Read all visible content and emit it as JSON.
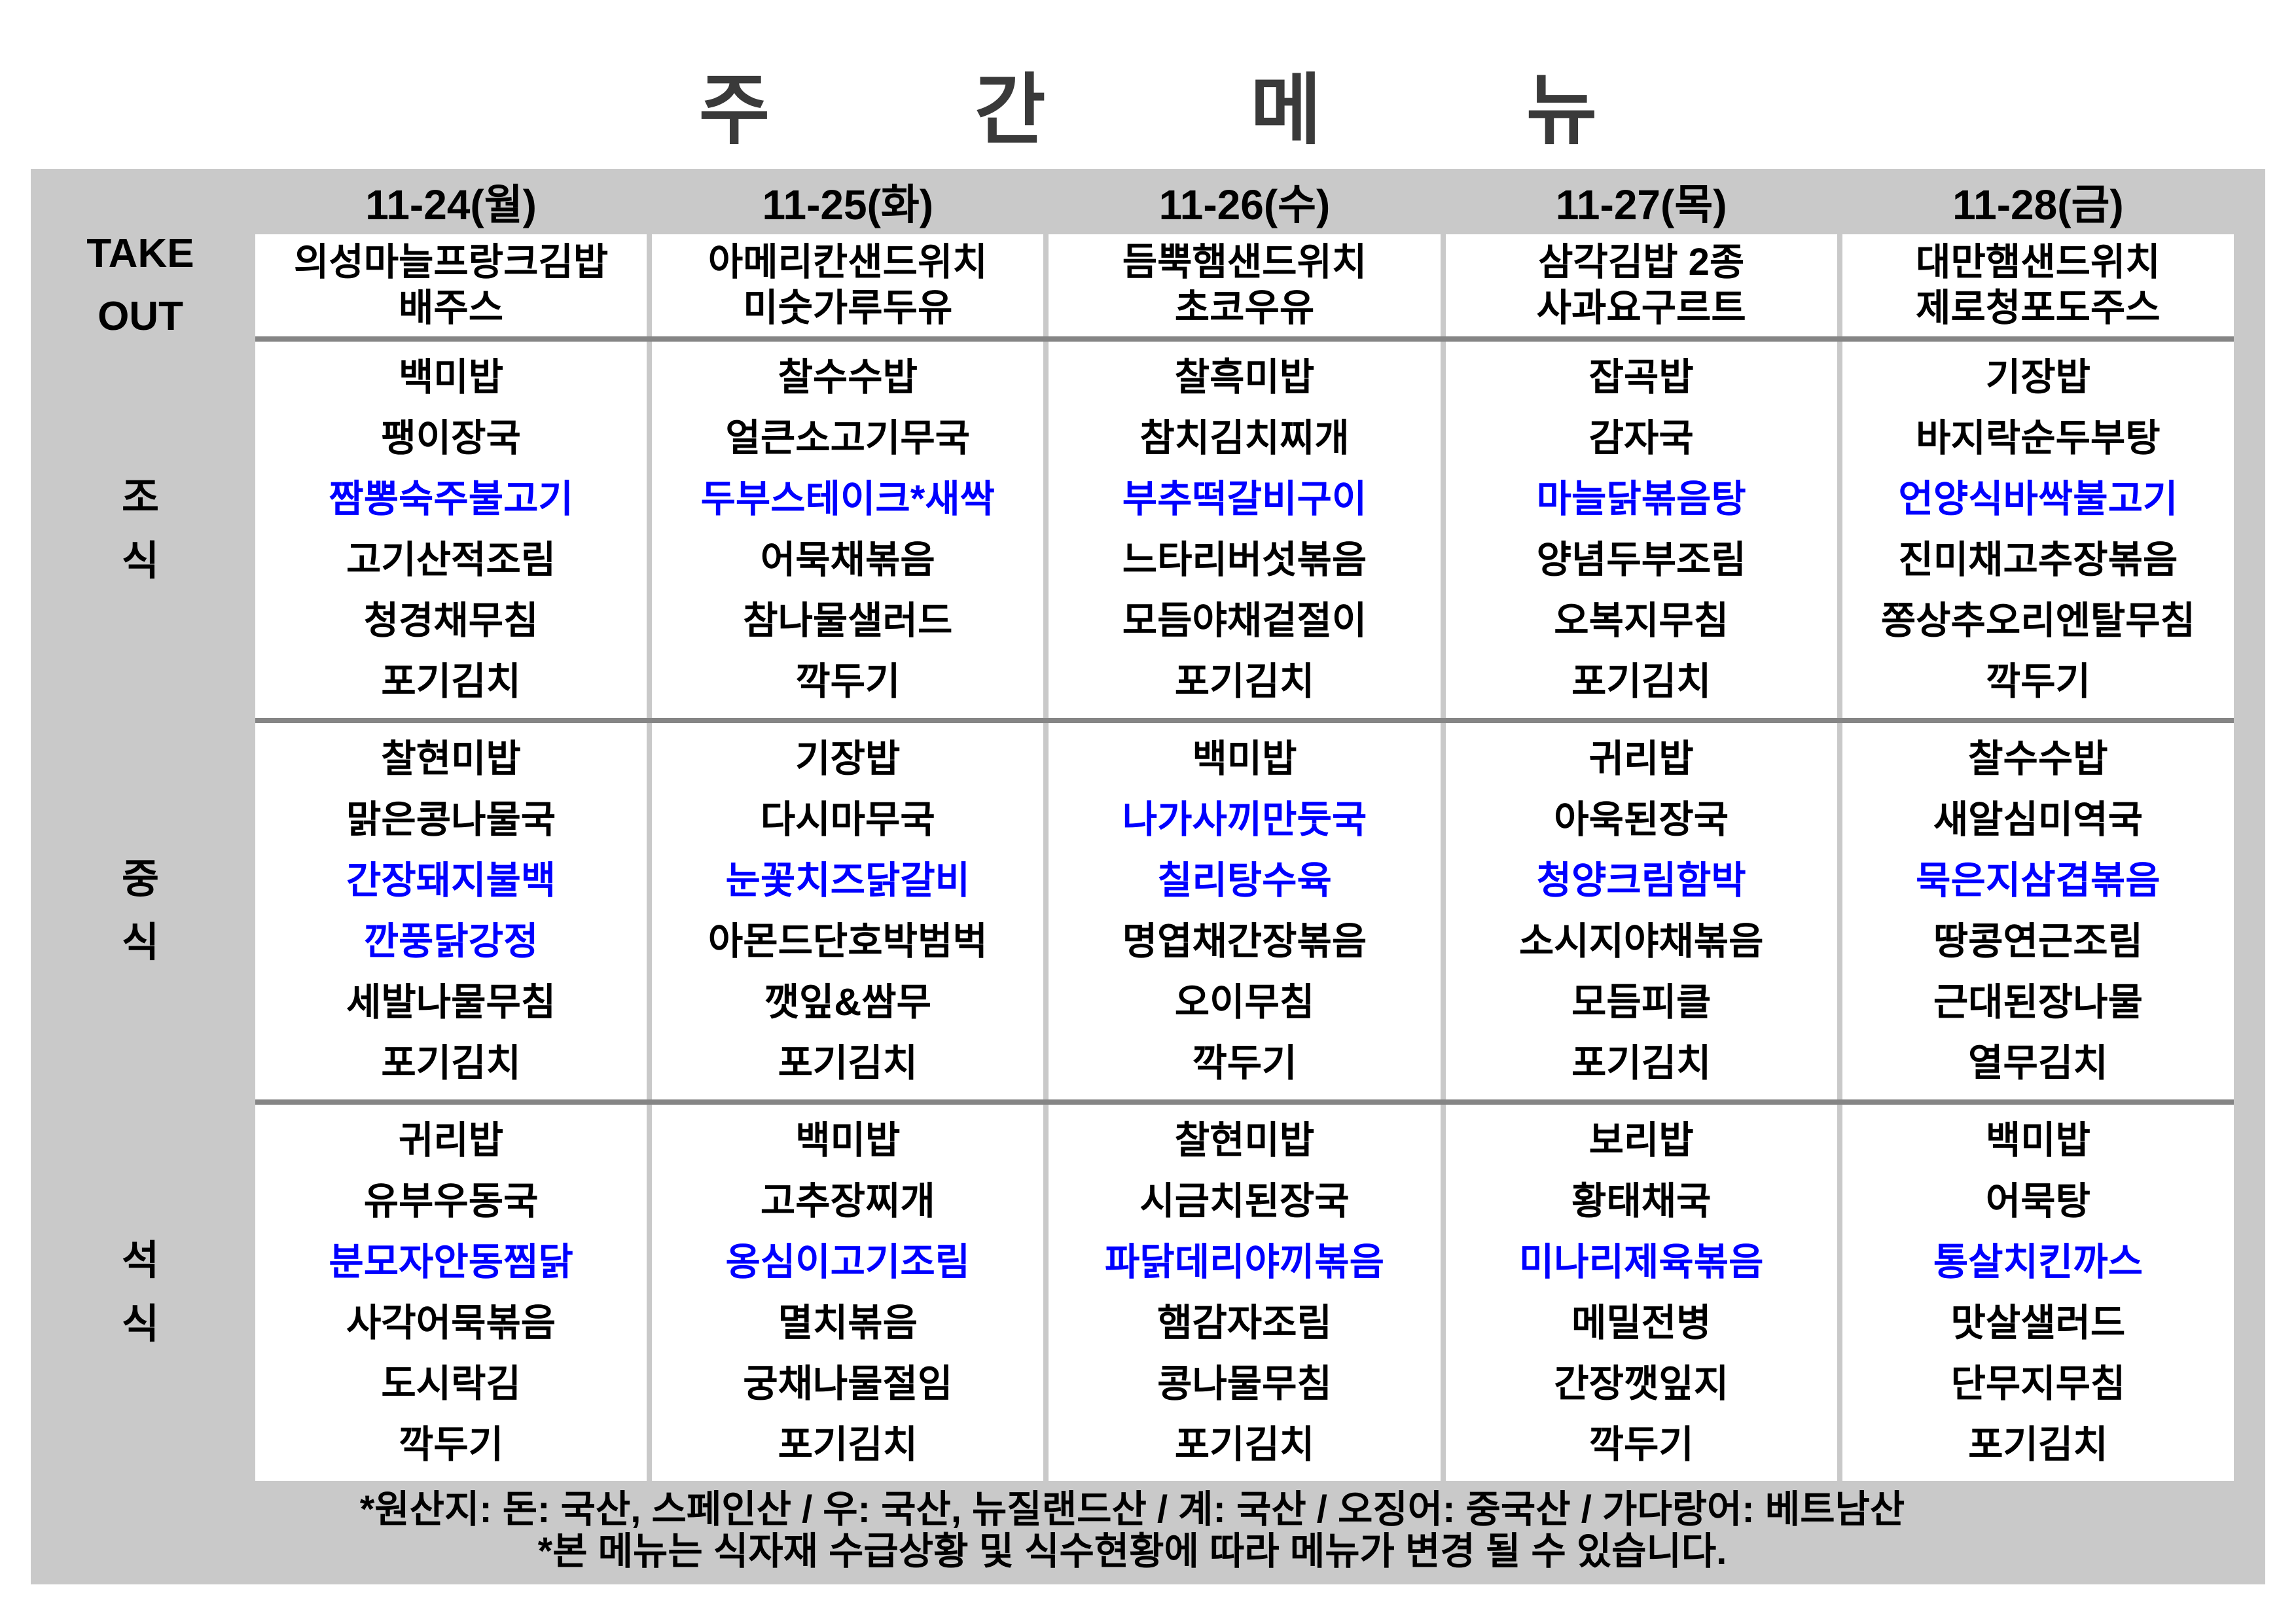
{
  "title": "주 간 메 뉴",
  "colors": {
    "table_background": "#c9c9c9",
    "cell_background": "#ffffff",
    "divider": "#858585",
    "highlight_text": "#0000ff",
    "text": "#000000",
    "title_text": "#3a3a3a"
  },
  "table": {
    "days": [
      "11-24(월)",
      "11-25(화)",
      "11-26(수)",
      "11-27(목)",
      "11-28(금)"
    ],
    "sections": [
      {
        "id": "takeout",
        "label": "TAKE OUT",
        "label_lines": [
          "TAKE",
          "OUT"
        ],
        "days": [
          {
            "items": [
              {
                "text": "의성마늘프랑크김밥",
                "highlight": false
              },
              {
                "text": "배주스",
                "highlight": false
              }
            ]
          },
          {
            "items": [
              {
                "text": "아메리칸샌드위치",
                "highlight": false
              },
              {
                "text": "미숫가루두유",
                "highlight": false
              }
            ]
          },
          {
            "items": [
              {
                "text": "듬뿍햄샌드위치",
                "highlight": false
              },
              {
                "text": "초코우유",
                "highlight": false
              }
            ]
          },
          {
            "items": [
              {
                "text": "삼각김밥 2종",
                "highlight": false
              },
              {
                "text": "사과요구르트",
                "highlight": false
              }
            ]
          },
          {
            "items": [
              {
                "text": "대만햄샌드위치",
                "highlight": false
              },
              {
                "text": "제로청포도주스",
                "highlight": false
              }
            ]
          }
        ]
      },
      {
        "id": "breakfast",
        "label": "조식",
        "label_lines": [
          "조",
          "식"
        ],
        "days": [
          {
            "items": [
              {
                "text": "백미밥",
                "highlight": false
              },
              {
                "text": "팽이장국",
                "highlight": false
              },
              {
                "text": "짬뽕숙주불고기",
                "highlight": true
              },
              {
                "text": "고기산적조림",
                "highlight": false
              },
              {
                "text": "청경채무침",
                "highlight": false
              },
              {
                "text": "포기김치",
                "highlight": false
              }
            ]
          },
          {
            "items": [
              {
                "text": "찰수수밥",
                "highlight": false
              },
              {
                "text": "얼큰소고기무국",
                "highlight": false
              },
              {
                "text": "두부스테이크*새싹",
                "highlight": true
              },
              {
                "text": "어묵채볶음",
                "highlight": false
              },
              {
                "text": "참나물샐러드",
                "highlight": false
              },
              {
                "text": "깍두기",
                "highlight": false
              }
            ]
          },
          {
            "items": [
              {
                "text": "찰흑미밥",
                "highlight": false
              },
              {
                "text": "참치김치찌개",
                "highlight": false
              },
              {
                "text": "부추떡갈비구이",
                "highlight": true
              },
              {
                "text": "느타리버섯볶음",
                "highlight": false
              },
              {
                "text": "모듬야채겉절이",
                "highlight": false
              },
              {
                "text": "포기김치",
                "highlight": false
              }
            ]
          },
          {
            "items": [
              {
                "text": "잡곡밥",
                "highlight": false
              },
              {
                "text": "감자국",
                "highlight": false
              },
              {
                "text": "마늘닭볶음탕",
                "highlight": true
              },
              {
                "text": "양념두부조림",
                "highlight": false
              },
              {
                "text": "오복지무침",
                "highlight": false
              },
              {
                "text": "포기김치",
                "highlight": false
              }
            ]
          },
          {
            "items": [
              {
                "text": "기장밥",
                "highlight": false
              },
              {
                "text": "바지락순두부탕",
                "highlight": false
              },
              {
                "text": "언양식바싹불고기",
                "highlight": true
              },
              {
                "text": "진미채고추장볶음",
                "highlight": false
              },
              {
                "text": "쫑상추오리엔탈무침",
                "highlight": false
              },
              {
                "text": "깍두기",
                "highlight": false
              }
            ]
          }
        ]
      },
      {
        "id": "lunch",
        "label": "중식",
        "label_lines": [
          "중",
          "식"
        ],
        "days": [
          {
            "items": [
              {
                "text": "찰현미밥",
                "highlight": false
              },
              {
                "text": "맑은콩나물국",
                "highlight": false
              },
              {
                "text": "간장돼지불백",
                "highlight": true
              },
              {
                "text": "깐풍닭강정",
                "highlight": true
              },
              {
                "text": "세발나물무침",
                "highlight": false
              },
              {
                "text": "포기김치",
                "highlight": false
              }
            ]
          },
          {
            "items": [
              {
                "text": "기장밥",
                "highlight": false
              },
              {
                "text": "다시마무국",
                "highlight": false
              },
              {
                "text": "눈꽃치즈닭갈비",
                "highlight": true
              },
              {
                "text": "아몬드단호박범벅",
                "highlight": false
              },
              {
                "text": "깻잎&쌈무",
                "highlight": false
              },
              {
                "text": "포기김치",
                "highlight": false
              }
            ]
          },
          {
            "items": [
              {
                "text": "백미밥",
                "highlight": false
              },
              {
                "text": "나가사끼만둣국",
                "highlight": true
              },
              {
                "text": "칠리탕수육",
                "highlight": true
              },
              {
                "text": "명엽채간장볶음",
                "highlight": false
              },
              {
                "text": "오이무침",
                "highlight": false
              },
              {
                "text": "깍두기",
                "highlight": false
              }
            ]
          },
          {
            "items": [
              {
                "text": "귀리밥",
                "highlight": false
              },
              {
                "text": "아욱된장국",
                "highlight": false
              },
              {
                "text": "청양크림함박",
                "highlight": true
              },
              {
                "text": "소시지야채볶음",
                "highlight": false
              },
              {
                "text": "모듬피클",
                "highlight": false
              },
              {
                "text": "포기김치",
                "highlight": false
              }
            ]
          },
          {
            "items": [
              {
                "text": "찰수수밥",
                "highlight": false
              },
              {
                "text": "새알심미역국",
                "highlight": false
              },
              {
                "text": "묵은지삼겹볶음",
                "highlight": true
              },
              {
                "text": "땅콩연근조림",
                "highlight": false
              },
              {
                "text": "근대된장나물",
                "highlight": false
              },
              {
                "text": "열무김치",
                "highlight": false
              }
            ]
          }
        ]
      },
      {
        "id": "dinner",
        "label": "석식",
        "label_lines": [
          "석",
          "식"
        ],
        "days": [
          {
            "items": [
              {
                "text": "귀리밥",
                "highlight": false
              },
              {
                "text": "유부우동국",
                "highlight": false
              },
              {
                "text": "분모자안동찜닭",
                "highlight": true
              },
              {
                "text": "사각어묵볶음",
                "highlight": false
              },
              {
                "text": "도시락김",
                "highlight": false
              },
              {
                "text": "깍두기",
                "highlight": false
              }
            ]
          },
          {
            "items": [
              {
                "text": "백미밥",
                "highlight": false
              },
              {
                "text": "고추장찌개",
                "highlight": false
              },
              {
                "text": "옹심이고기조림",
                "highlight": true
              },
              {
                "text": "멸치볶음",
                "highlight": false
              },
              {
                "text": "궁채나물절임",
                "highlight": false
              },
              {
                "text": "포기김치",
                "highlight": false
              }
            ]
          },
          {
            "items": [
              {
                "text": "찰현미밥",
                "highlight": false
              },
              {
                "text": "시금치된장국",
                "highlight": false
              },
              {
                "text": "파닭데리야끼볶음",
                "highlight": true
              },
              {
                "text": "햄감자조림",
                "highlight": false
              },
              {
                "text": "콩나물무침",
                "highlight": false
              },
              {
                "text": "포기김치",
                "highlight": false
              }
            ]
          },
          {
            "items": [
              {
                "text": "보리밥",
                "highlight": false
              },
              {
                "text": "황태채국",
                "highlight": false
              },
              {
                "text": "미나리제육볶음",
                "highlight": true
              },
              {
                "text": "메밀전병",
                "highlight": false
              },
              {
                "text": "간장깻잎지",
                "highlight": false
              },
              {
                "text": "깍두기",
                "highlight": false
              }
            ]
          },
          {
            "items": [
              {
                "text": "백미밥",
                "highlight": false
              },
              {
                "text": "어묵탕",
                "highlight": false
              },
              {
                "text": "통살치킨까스",
                "highlight": true
              },
              {
                "text": "맛살샐러드",
                "highlight": false
              },
              {
                "text": "단무지무침",
                "highlight": false
              },
              {
                "text": "포기김치",
                "highlight": false
              }
            ]
          }
        ]
      }
    ]
  },
  "footer": {
    "origin_note": "*원산지: 돈: 국산, 스페인산 / 우: 국산, 뉴질랜드산 / 계: 국산 / 오징어: 중국산 / 가다랑어: 베트남산",
    "change_note": "*본 메뉴는 식자재 수급상황 및 식수현황에 따라 메뉴가 변경 될 수 있습니다."
  }
}
